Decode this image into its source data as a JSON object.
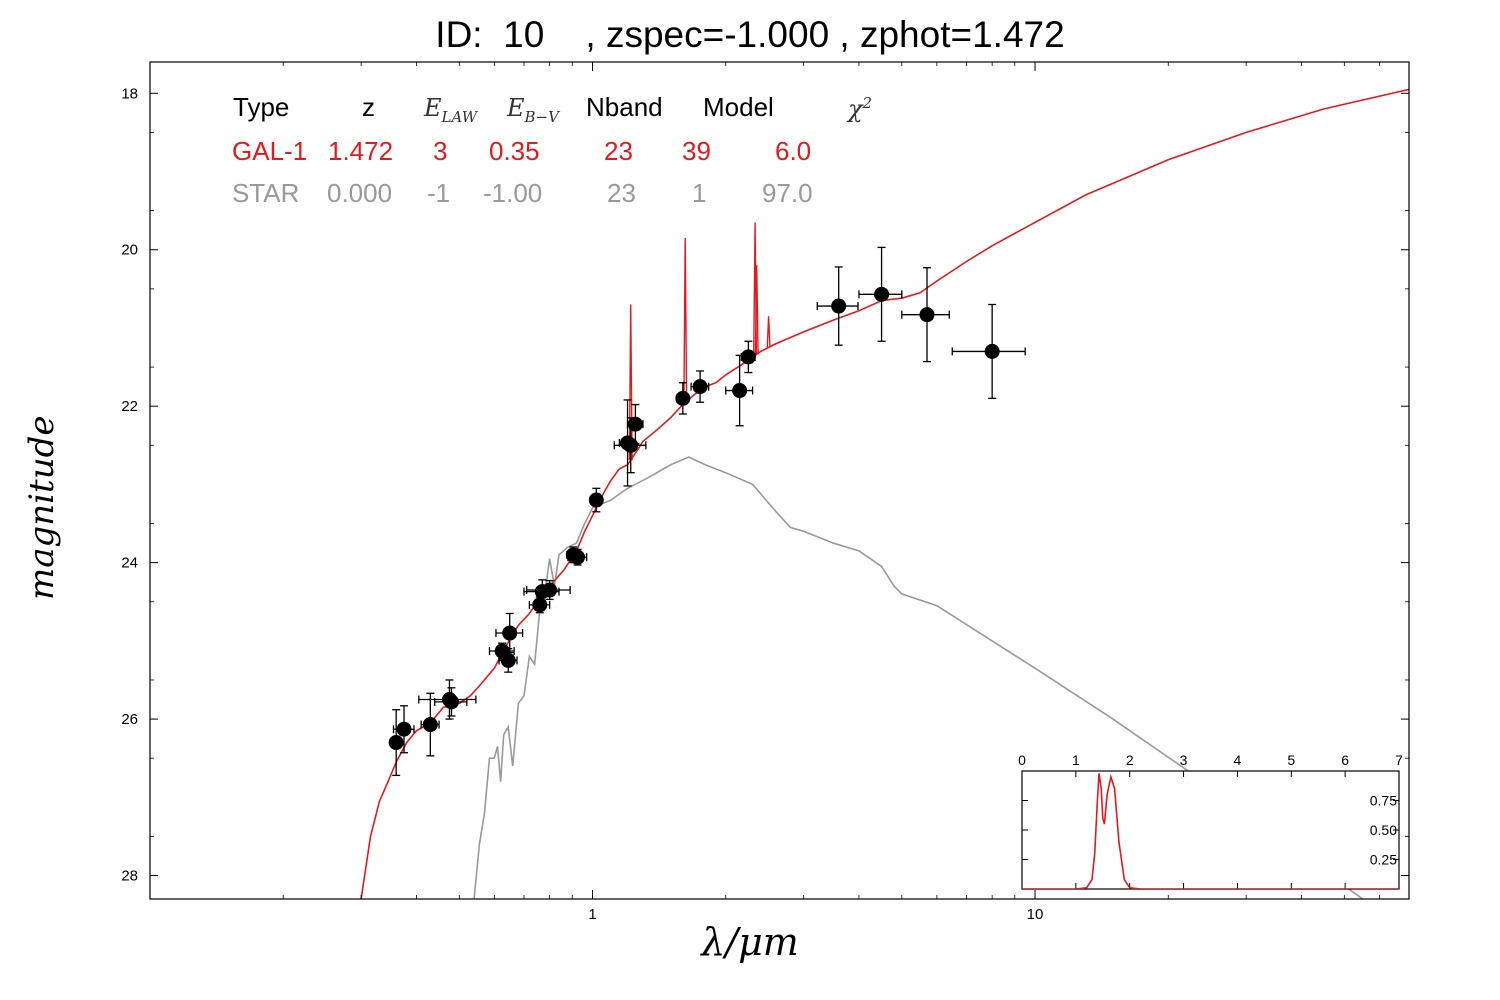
{
  "title": "ID:  10    , zspec=-1.000 , zphot=1.472",
  "fit_table": {
    "headers": {
      "type": "Type",
      "z": "z",
      "elaw_main": "E",
      "elaw_sub": "LAW",
      "ebv_main": "E",
      "ebv_sub": "B−V",
      "nband": "Nband",
      "model": "Model",
      "chi_main": "χ",
      "chi_sup": "2"
    },
    "rows": [
      {
        "type": "GAL-1",
        "z": "1.472",
        "elaw": "3",
        "ebv": "0.35",
        "nband": "23",
        "model": "39",
        "chi2": "6.0",
        "color": "#e31a1c"
      },
      {
        "type": "STAR",
        "z": "0.000",
        "elaw": "-1",
        "ebv": "-1.00",
        "nband": "23",
        "model": "1",
        "chi2": "97.0",
        "color": "#999999"
      }
    ]
  },
  "chart_data": [
    {
      "type": "scatter",
      "xlabel": "λ/μm",
      "ylabel": "magnitude",
      "xscale": "log",
      "xlim": [
        0.1,
        70
      ],
      "ylim": [
        28.3,
        17.6
      ],
      "y_inverted": true,
      "x_ticks": [
        "1",
        "10"
      ],
      "y_ticks": [
        "18",
        "20",
        "22",
        "24",
        "26",
        "28"
      ],
      "observations": [
        {
          "x": 0.36,
          "y": 26.3,
          "xerr": 0.01,
          "yerr": 0.42
        },
        {
          "x": 0.375,
          "y": 26.13,
          "xerr": 0.02,
          "yerr": 0.3
        },
        {
          "x": 0.43,
          "y": 26.07,
          "xerr": 0.02,
          "yerr": 0.4
        },
        {
          "x": 0.475,
          "y": 25.75,
          "xerr": 0.07,
          "yerr": 0.25
        },
        {
          "x": 0.48,
          "y": 25.78,
          "xerr": 0.04,
          "yerr": 0.18
        },
        {
          "x": 0.625,
          "y": 25.13,
          "xerr": 0.04,
          "yerr": 0.1
        },
        {
          "x": 0.645,
          "y": 25.25,
          "xerr": 0.03,
          "yerr": 0.15
        },
        {
          "x": 0.65,
          "y": 24.9,
          "xerr": 0.045,
          "yerr": 0.25
        },
        {
          "x": 0.76,
          "y": 24.54,
          "xerr": 0.04,
          "yerr": 0.1
        },
        {
          "x": 0.77,
          "y": 24.37,
          "xerr": 0.07,
          "yerr": 0.15
        },
        {
          "x": 0.8,
          "y": 24.35,
          "xerr": 0.09,
          "yerr": 0.12
        },
        {
          "x": 0.905,
          "y": 23.9,
          "xerr": 0.03,
          "yerr": 0.1
        },
        {
          "x": 0.925,
          "y": 23.93,
          "xerr": 0.045,
          "yerr": 0.1
        },
        {
          "x": 1.02,
          "y": 23.2,
          "xerr": 0.03,
          "yerr": 0.15
        },
        {
          "x": 1.2,
          "y": 22.47,
          "xerr": 0.05,
          "yerr": 0.55
        },
        {
          "x": 1.22,
          "y": 22.5,
          "xerr": 0.1,
          "yerr": 0.35
        },
        {
          "x": 1.25,
          "y": 22.23,
          "xerr": 0.05,
          "yerr": 0.25
        },
        {
          "x": 1.6,
          "y": 21.9,
          "xerr": 0.05,
          "yerr": 0.2
        },
        {
          "x": 1.75,
          "y": 21.75,
          "xerr": 0.08,
          "yerr": 0.2
        },
        {
          "x": 2.15,
          "y": 21.8,
          "xerr": 0.15,
          "yerr": 0.45
        },
        {
          "x": 2.25,
          "y": 21.37,
          "xerr": 0.08,
          "yerr": 0.2
        },
        {
          "x": 3.6,
          "y": 20.72,
          "xerr": 0.38,
          "yerr": 0.5
        },
        {
          "x": 4.5,
          "y": 20.57,
          "xerr": 0.5,
          "yerr": 0.6
        },
        {
          "x": 5.7,
          "y": 20.83,
          "xerr": 0.7,
          "yerr": 0.6
        },
        {
          "x": 8.0,
          "y": 21.3,
          "xerr": 1.5,
          "yerr": 0.6
        }
      ],
      "gal_sed": {
        "color": "#e31a1c",
        "points": [
          [
            0.3,
            28.3
          ],
          [
            0.315,
            27.5
          ],
          [
            0.33,
            27.05
          ],
          [
            0.345,
            26.8
          ],
          [
            0.36,
            26.55
          ],
          [
            0.38,
            26.3
          ],
          [
            0.4,
            26.15
          ],
          [
            0.43,
            26.05
          ],
          [
            0.46,
            25.85
          ],
          [
            0.5,
            25.8
          ],
          [
            0.53,
            25.7
          ],
          [
            0.56,
            25.55
          ],
          [
            0.6,
            25.35
          ],
          [
            0.64,
            25.05
          ],
          [
            0.68,
            24.8
          ],
          [
            0.72,
            24.65
          ],
          [
            0.76,
            24.45
          ],
          [
            0.8,
            24.3
          ],
          [
            0.86,
            24.1
          ],
          [
            0.92,
            23.85
          ],
          [
            0.96,
            23.6
          ],
          [
            1.0,
            23.4
          ],
          [
            1.05,
            23.15
          ],
          [
            1.1,
            22.95
          ],
          [
            1.15,
            22.8
          ],
          [
            1.2,
            22.75
          ],
          [
            1.25,
            22.6
          ],
          [
            1.3,
            22.45
          ],
          [
            1.4,
            22.3
          ],
          [
            1.5,
            22.15
          ],
          [
            1.6,
            21.98
          ],
          [
            1.7,
            21.85
          ],
          [
            1.8,
            21.75
          ],
          [
            1.9,
            21.7
          ],
          [
            2.0,
            21.6
          ],
          [
            2.2,
            21.45
          ],
          [
            2.4,
            21.3
          ],
          [
            2.6,
            21.2
          ],
          [
            3.0,
            21.05
          ],
          [
            3.5,
            20.9
          ],
          [
            4.0,
            20.78
          ],
          [
            4.5,
            20.65
          ],
          [
            5.0,
            20.62
          ],
          [
            5.5,
            20.55
          ],
          [
            6.0,
            20.4
          ],
          [
            7.0,
            20.15
          ],
          [
            8.0,
            19.95
          ],
          [
            10.0,
            19.65
          ],
          [
            13.0,
            19.3
          ],
          [
            20.0,
            18.85
          ],
          [
            30.0,
            18.5
          ],
          [
            45.0,
            18.2
          ],
          [
            70.0,
            17.95
          ]
        ],
        "emission_lines": [
          [
            1.22,
            20.7
          ],
          [
            1.62,
            19.85
          ],
          [
            2.33,
            19.65
          ],
          [
            2.5,
            20.85
          ],
          [
            2.35,
            20.2
          ]
        ]
      },
      "star_sed": {
        "color": "#999999",
        "points": [
          [
            0.54,
            28.3
          ],
          [
            0.555,
            27.6
          ],
          [
            0.57,
            27.2
          ],
          [
            0.585,
            26.5
          ],
          [
            0.6,
            26.5
          ],
          [
            0.61,
            26.35
          ],
          [
            0.62,
            26.8
          ],
          [
            0.63,
            26.2
          ],
          [
            0.645,
            26.1
          ],
          [
            0.66,
            26.6
          ],
          [
            0.68,
            25.8
          ],
          [
            0.7,
            25.7
          ],
          [
            0.72,
            25.2
          ],
          [
            0.74,
            25.3
          ],
          [
            0.76,
            24.6
          ],
          [
            0.78,
            24.4
          ],
          [
            0.8,
            23.95
          ],
          [
            0.82,
            24.3
          ],
          [
            0.84,
            23.9
          ],
          [
            0.88,
            23.8
          ],
          [
            0.92,
            23.75
          ],
          [
            0.96,
            23.5
          ],
          [
            1.0,
            23.3
          ],
          [
            1.1,
            23.2
          ],
          [
            1.2,
            23.05
          ],
          [
            1.35,
            22.9
          ],
          [
            1.5,
            22.75
          ],
          [
            1.65,
            22.65
          ],
          [
            1.8,
            22.75
          ],
          [
            2.0,
            22.85
          ],
          [
            2.3,
            23.0
          ],
          [
            2.6,
            23.35
          ],
          [
            2.8,
            23.55
          ],
          [
            3.0,
            23.6
          ],
          [
            3.5,
            23.75
          ],
          [
            4.0,
            23.85
          ],
          [
            4.5,
            24.05
          ],
          [
            4.8,
            24.3
          ],
          [
            5.0,
            24.4
          ],
          [
            6.0,
            24.55
          ],
          [
            8.0,
            25.0
          ],
          [
            10.0,
            25.35
          ],
          [
            15.0,
            26.0
          ],
          [
            22.0,
            26.65
          ],
          [
            35.0,
            27.5
          ],
          [
            55.0,
            28.3
          ]
        ]
      }
    },
    {
      "type": "line",
      "name": "zphot pdf inset",
      "xlim": [
        0,
        7
      ],
      "ylim": [
        0,
        1.0
      ],
      "x_ticks": [
        "0",
        "1",
        "2",
        "3",
        "4",
        "5",
        "6",
        "7"
      ],
      "y_ticks": [
        "0.25",
        "0.50",
        "0.75"
      ],
      "color": "#e31a1c",
      "points": [
        [
          0,
          0
        ],
        [
          1.0,
          0
        ],
        [
          1.2,
          0.01
        ],
        [
          1.3,
          0.08
        ],
        [
          1.35,
          0.3
        ],
        [
          1.4,
          0.75
        ],
        [
          1.43,
          0.98
        ],
        [
          1.47,
          0.85
        ],
        [
          1.5,
          0.6
        ],
        [
          1.53,
          0.55
        ],
        [
          1.58,
          0.8
        ],
        [
          1.65,
          0.95
        ],
        [
          1.72,
          0.85
        ],
        [
          1.8,
          0.4
        ],
        [
          1.9,
          0.08
        ],
        [
          2.0,
          0.01
        ],
        [
          2.2,
          0
        ],
        [
          7,
          0
        ]
      ]
    }
  ]
}
